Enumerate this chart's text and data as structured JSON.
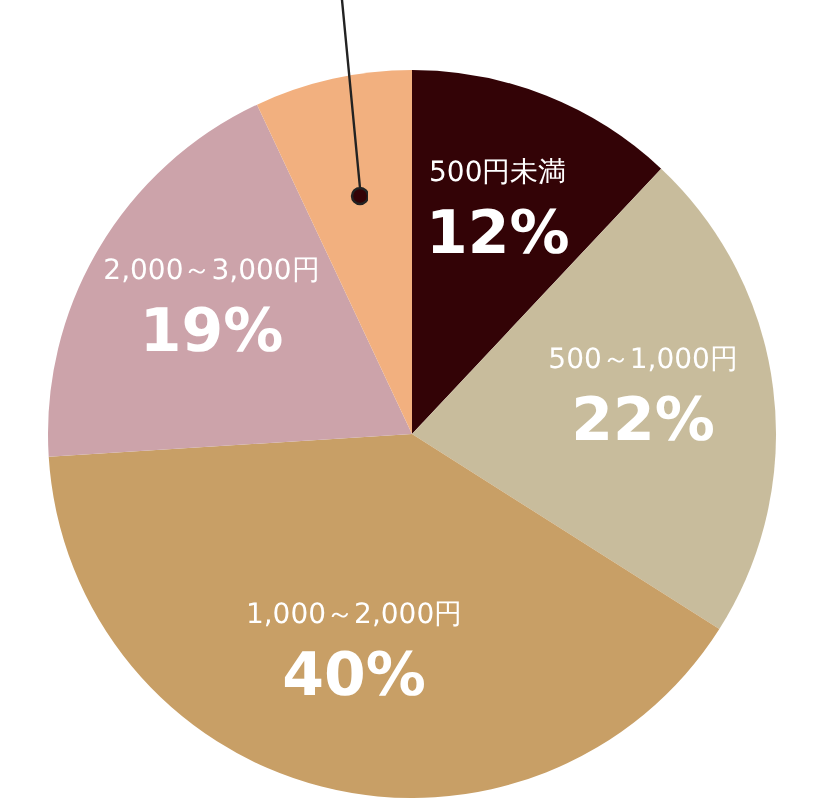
{
  "chart_data": {
    "type": "pie",
    "categories": [
      "500円未満",
      "500～1,000円",
      "1,000～2,000円",
      "2,000～3,000円",
      null
    ],
    "values": [
      12,
      22,
      40,
      19,
      7
    ],
    "value_labels": [
      "12%",
      "22%",
      "40%",
      "19%",
      null
    ],
    "colors": [
      "#330306",
      "#c8bc9c",
      "#c89f66",
      "#cca3aa",
      "#f2b07f"
    ],
    "legend": false
  }
}
